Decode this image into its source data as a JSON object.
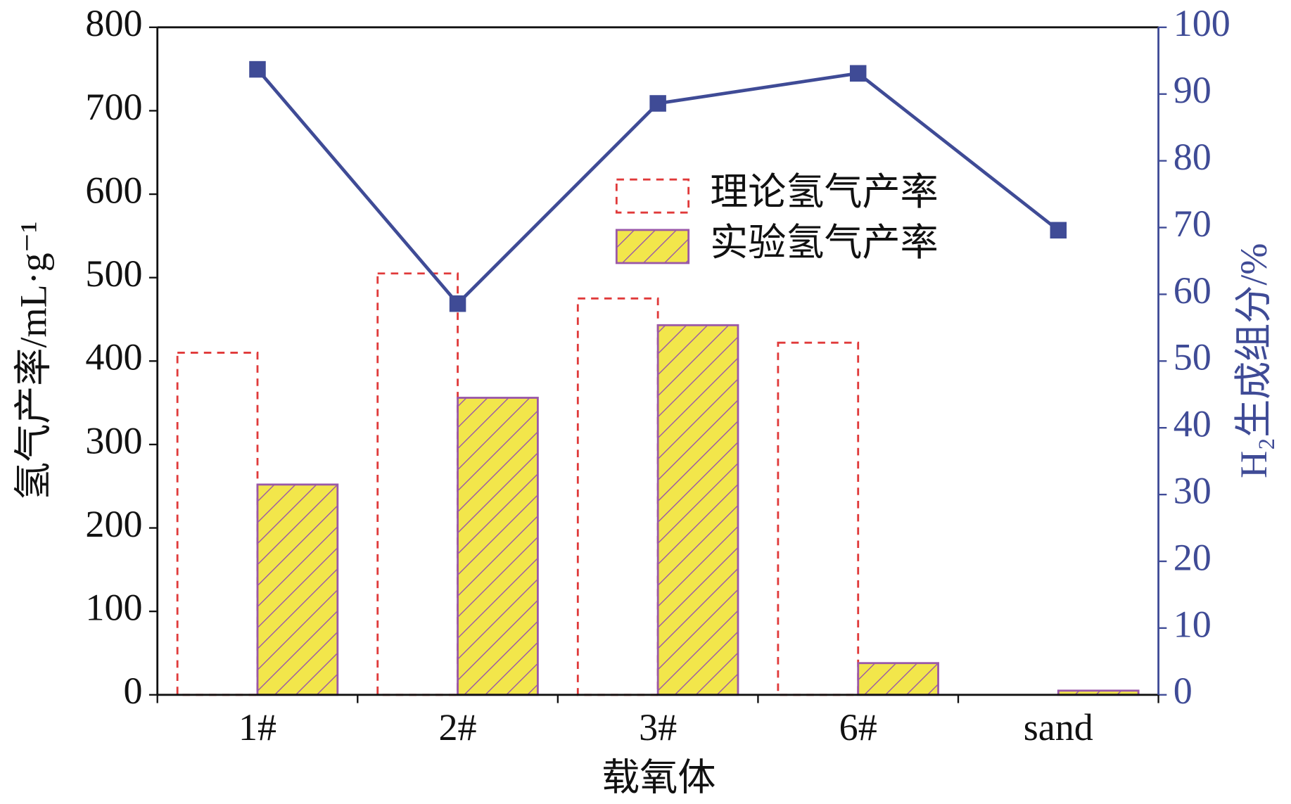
{
  "chart_data": {
    "type": "bar",
    "x_label": "载氧体",
    "y_label": "氢气产率/mL·g⁻¹",
    "y2_label": "H₂生成组分/%",
    "categories": [
      "1#",
      "2#",
      "3#",
      "6#",
      "sand"
    ],
    "series": [
      {
        "name": "理论氢气产率",
        "type": "bar",
        "color": "#e03a3a",
        "dashed": true,
        "values": [
          410,
          505,
          475,
          422,
          null
        ]
      },
      {
        "name": "实验氢气产率",
        "type": "bar",
        "color": "#f2e64b",
        "hatch_color": "#9a58a8",
        "values": [
          252,
          356,
          443,
          38,
          5
        ]
      },
      {
        "type": "line",
        "axis": "y2",
        "color": "#3f4b96",
        "values": [
          93.7,
          58.6,
          88.6,
          93.1,
          69.6
        ]
      }
    ],
    "ylim": [
      0,
      800
    ],
    "yticks": [
      0,
      100,
      200,
      300,
      400,
      500,
      600,
      700,
      800
    ],
    "y2lim": [
      0,
      100
    ],
    "y2ticks": [
      0,
      10,
      20,
      30,
      40,
      50,
      60,
      70,
      80,
      90,
      100
    ],
    "y2_color": "#3f4b96",
    "grid": false,
    "legend": "upper center"
  }
}
